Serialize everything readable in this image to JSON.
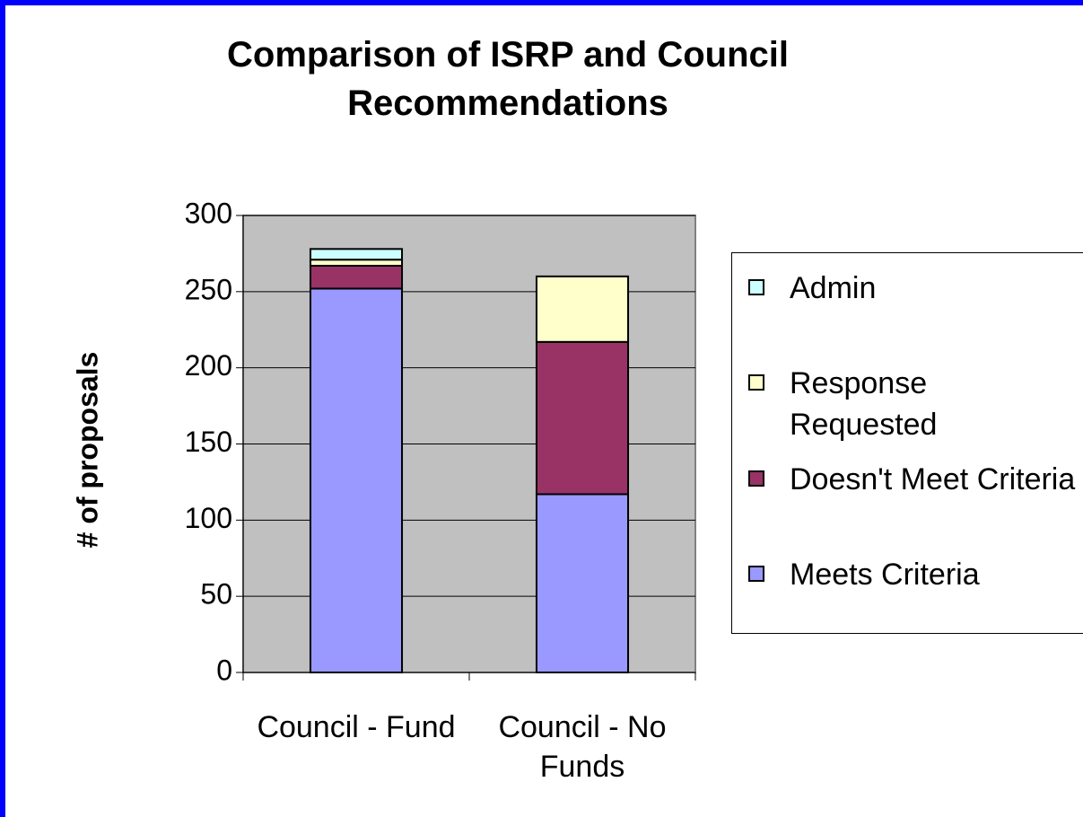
{
  "chart_data": {
    "type": "stacked_bar",
    "title": "Comparison of ISRP and Council Recommendations",
    "y_label": "# of proposals",
    "categories": [
      "Council - Fund",
      "Council - No Funds"
    ],
    "series": [
      {
        "name": "Meets Criteria",
        "color": "#9999ff",
        "values": [
          252,
          117
        ]
      },
      {
        "name": "Doesn't Meet Criteria",
        "color": "#993366",
        "values": [
          15,
          100
        ]
      },
      {
        "name": "Response Requested",
        "color": "#ffffcc",
        "values": [
          4,
          43
        ]
      },
      {
        "name": "Admin",
        "color": "#ccffff",
        "values": [
          7,
          0
        ]
      }
    ],
    "ylim": [
      0,
      300
    ],
    "yticks": [
      0,
      50,
      100,
      150,
      200,
      250,
      300
    ],
    "grid": true
  }
}
